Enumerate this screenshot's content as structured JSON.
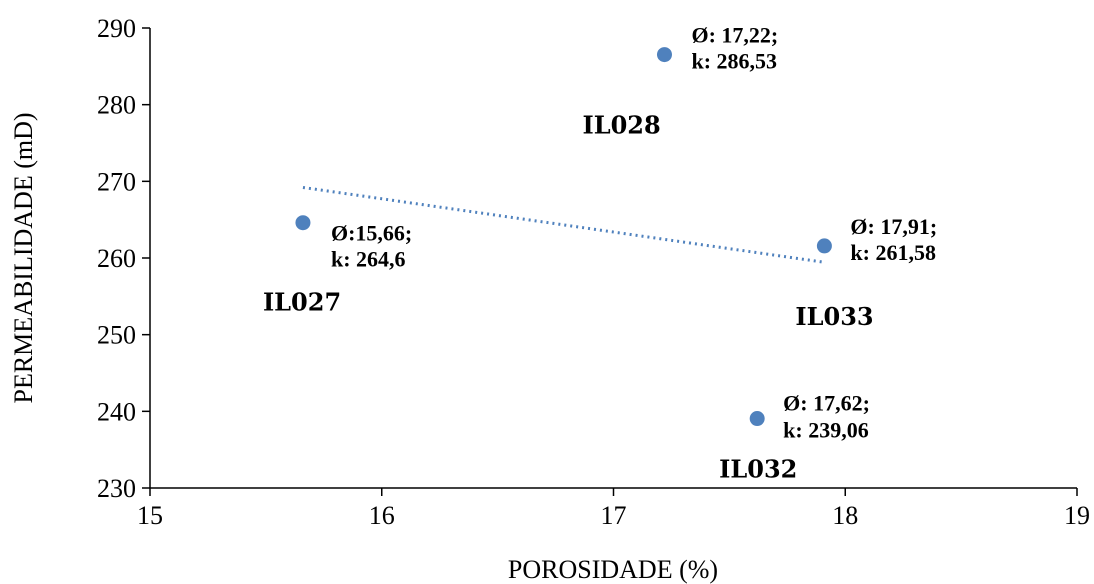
{
  "chart_data": {
    "type": "scatter",
    "title": "",
    "xlabel": "POROSIDADE  (%)",
    "ylabel": "PERMEABILIDADE (mD)",
    "xlim": [
      15,
      19
    ],
    "ylim": [
      230,
      290
    ],
    "x_ticks": [
      "15",
      "16",
      "17",
      "18",
      "19"
    ],
    "y_ticks": [
      "230",
      "240",
      "250",
      "260",
      "270",
      "280",
      "290"
    ],
    "grid": false,
    "legend": "none",
    "colors": {
      "marker": "#4F81BD",
      "trendline": "#4F81BD",
      "axis": "#000000"
    },
    "points": [
      {
        "x": 15.66,
        "y": 264.6,
        "label_line1": "Ø:15,66;",
        "label_line2": "k: 264,6",
        "sample": "IL027"
      },
      {
        "x": 17.22,
        "y": 286.53,
        "label_line1": "Ø: 17,22;",
        "label_line2": "k: 286,53",
        "sample": "IL028"
      },
      {
        "x": 17.62,
        "y": 239.06,
        "label_line1": "Ø: 17,62;",
        "label_line2": "k: 239,06",
        "sample": "IL032"
      },
      {
        "x": 17.91,
        "y": 261.58,
        "label_line1": "Ø: 17,91;",
        "label_line2": "k: 261,58",
        "sample": "IL033"
      }
    ],
    "trendline": {
      "type": "linear",
      "x": [
        15.66,
        17.91
      ]
    }
  }
}
